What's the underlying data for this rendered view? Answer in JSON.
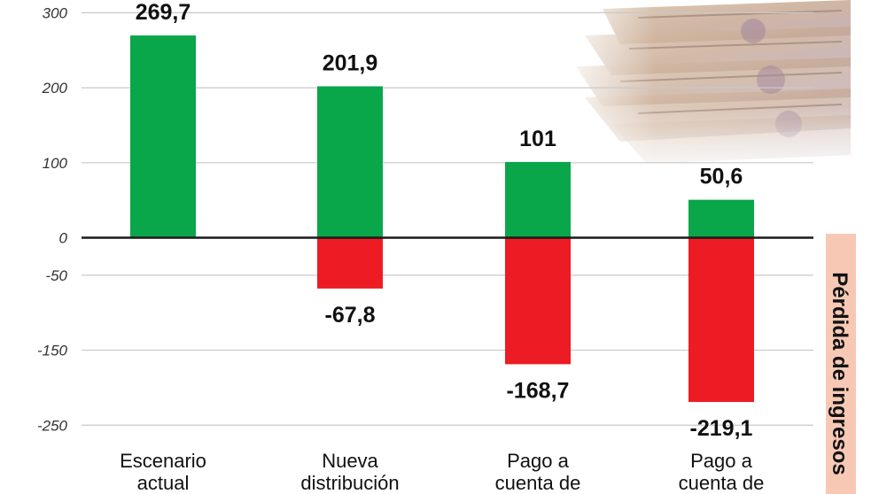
{
  "chart_data": {
    "type": "bar",
    "categories": [
      [
        "Escenario",
        "actual"
      ],
      [
        "Nueva",
        "distribución"
      ],
      [
        "Pago a",
        "cuenta de"
      ],
      [
        "Pago a",
        "cuenta de"
      ]
    ],
    "series": [
      {
        "values": [
          269.7,
          201.9,
          101,
          50.6
        ],
        "color": "#0aa64a"
      },
      {
        "values": [
          null,
          -67.8,
          -168.7,
          -219.1
        ],
        "color": "#ed1c24"
      }
    ],
    "data_labels": {
      "positive": [
        "269,7",
        "201,9",
        "101",
        "50,6"
      ],
      "negative": [
        "",
        "-67,8",
        "-168,7",
        "-219,1"
      ]
    },
    "y_ticks": [
      {
        "value": 300,
        "label": "300"
      },
      {
        "value": 200,
        "label": "200"
      },
      {
        "value": 100,
        "label": "100"
      },
      {
        "value": 0,
        "label": "0"
      },
      {
        "value": -50,
        "label": "-50"
      },
      {
        "value": -150,
        "label": "-150"
      },
      {
        "value": -250,
        "label": "-250"
      }
    ],
    "side_label": "Pérdida de ingresos",
    "grid": true,
    "zero_line_color": "#1a1a1a",
    "grid_color": "#c8c8c8",
    "side_band_color": "#f7c9b5",
    "decoration": "banknotes-photo"
  }
}
